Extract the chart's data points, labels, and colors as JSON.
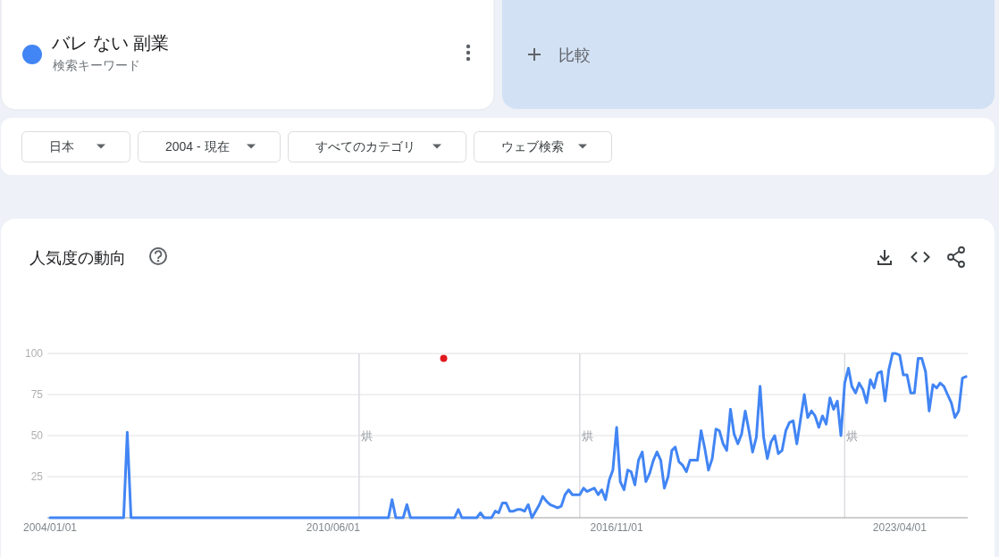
{
  "chart_data": {
    "type": "line",
    "title": "人気度の動向",
    "legend": "top left",
    "grid": "y",
    "xlim": [
      "2004-01-01",
      "2024-10-15"
    ],
    "xticks": [
      {
        "value": "2004-01-01",
        "label": "2004/01/01"
      },
      {
        "value": "2010-06-01",
        "label": "2010/06/01"
      },
      {
        "value": "2016-11-01",
        "label": "2016/11/01"
      },
      {
        "value": "2023-04-01",
        "label": "2023/04/01"
      }
    ],
    "ylim": [
      0,
      100
    ],
    "yticks": [
      25,
      50,
      75,
      100
    ],
    "ref_lines": [
      {
        "axis": "x",
        "value": "2011-01-01",
        "label": "烘",
        "color": "#dadce0"
      },
      {
        "axis": "x",
        "value": "2016-01-01",
        "label": "烘",
        "color": "#dadce0"
      },
      {
        "axis": "x",
        "value": "2022-01-01",
        "label": "烘",
        "color": "#dadce0"
      }
    ],
    "annotations": [
      "検索キーワード",
      "比較",
      "日本",
      "2004 - 現在",
      "すべてのカテゴリ",
      "ウェブ検索"
    ],
    "series": [
      {
        "name": "バレ ない 副業",
        "color": "#4285f4",
        "x": [
          "2004-01",
          "2005-09",
          "2005-10",
          "2005-11",
          "2011-09",
          "2011-10",
          "2011-11",
          "2012-01",
          "2012-02",
          "2012-03",
          "2013-03",
          "2013-04",
          "2013-05",
          "2013-09",
          "2013-10",
          "2013-11",
          "2014-01",
          "2014-02",
          "2014-03",
          "2014-04",
          "2014-05",
          "2014-06",
          "2014-07",
          "2014-08",
          "2014-09",
          "2014-10",
          "2014-11",
          "2014-12",
          "2015-01",
          "2015-02",
          "2015-03",
          "2015-04",
          "2015-05",
          "2015-06",
          "2015-07",
          "2015-08",
          "2015-09",
          "2015-10",
          "2015-11",
          "2015-12",
          "2016-01",
          "2016-02",
          "2016-03",
          "2016-04",
          "2016-05",
          "2016-06",
          "2016-07",
          "2016-08",
          "2016-09",
          "2016-10",
          "2016-11",
          "2016-12",
          "2017-01",
          "2017-02",
          "2017-03",
          "2017-04",
          "2017-05",
          "2017-06",
          "2017-07",
          "2017-08",
          "2017-09",
          "2017-10",
          "2017-11",
          "2017-12",
          "2018-01",
          "2018-02",
          "2018-03",
          "2018-04",
          "2018-05",
          "2018-06",
          "2018-07",
          "2018-08",
          "2018-09",
          "2018-10",
          "2018-11",
          "2018-12",
          "2019-01",
          "2019-02",
          "2019-03",
          "2019-04",
          "2019-05",
          "2019-06",
          "2019-07",
          "2019-08",
          "2019-09",
          "2019-10",
          "2019-11",
          "2019-12",
          "2020-01",
          "2020-02",
          "2020-03",
          "2020-04",
          "2020-05",
          "2020-06",
          "2020-07",
          "2020-08",
          "2020-09",
          "2020-10",
          "2020-11",
          "2020-12",
          "2021-01",
          "2021-02",
          "2021-03",
          "2021-04",
          "2021-05",
          "2021-06",
          "2021-07",
          "2021-08",
          "2021-09",
          "2021-10",
          "2021-11",
          "2021-12",
          "2022-01",
          "2022-02",
          "2022-03",
          "2022-04",
          "2022-05",
          "2022-06",
          "2022-07",
          "2022-08",
          "2022-09",
          "2022-10",
          "2022-11",
          "2022-12",
          "2023-01",
          "2023-02",
          "2023-03",
          "2023-04",
          "2023-05",
          "2023-06",
          "2023-07",
          "2023-08",
          "2023-09",
          "2023-10",
          "2023-11",
          "2023-12",
          "2024-01",
          "2024-02",
          "2024-03",
          "2024-04",
          "2024-05",
          "2024-06",
          "2024-07",
          "2024-08",
          "2024-09",
          "2024-10"
        ],
        "values": [
          0,
          0,
          52,
          0,
          0,
          11,
          0,
          0,
          8,
          0,
          0,
          5,
          0,
          0,
          3,
          0,
          0,
          4,
          3,
          9,
          9,
          4,
          4,
          5,
          5,
          4,
          8,
          0,
          4,
          8,
          13,
          10,
          8,
          7,
          6,
          7,
          14,
          17,
          14,
          14,
          14,
          18,
          16,
          17,
          18,
          14,
          17,
          11,
          23,
          29,
          55,
          22,
          17,
          29,
          28,
          20,
          35,
          40,
          22,
          27,
          35,
          40,
          35,
          18,
          25,
          41,
          43,
          34,
          32,
          28,
          35,
          35,
          35,
          53,
          42,
          29,
          36,
          54,
          53,
          45,
          41,
          66,
          51,
          45,
          51,
          65,
          53,
          40,
          49,
          80,
          49,
          36,
          46,
          50,
          39,
          41,
          53,
          58,
          59,
          45,
          60,
          75,
          61,
          65,
          62,
          55,
          62,
          57,
          73,
          66,
          71,
          50,
          82,
          91,
          80,
          76,
          82,
          78,
          70,
          84,
          79,
          88,
          89,
          71,
          90,
          100,
          100,
          99,
          87,
          87,
          76,
          76,
          97,
          97,
          89,
          65,
          81,
          79,
          82,
          80,
          75,
          70,
          61,
          65,
          85,
          86
        ]
      },
      {
        "type": "scatter",
        "marker": "circle",
        "color": "#e0191e",
        "x": [
          "2012-12"
        ],
        "values": [
          97
        ]
      }
    ]
  }
}
